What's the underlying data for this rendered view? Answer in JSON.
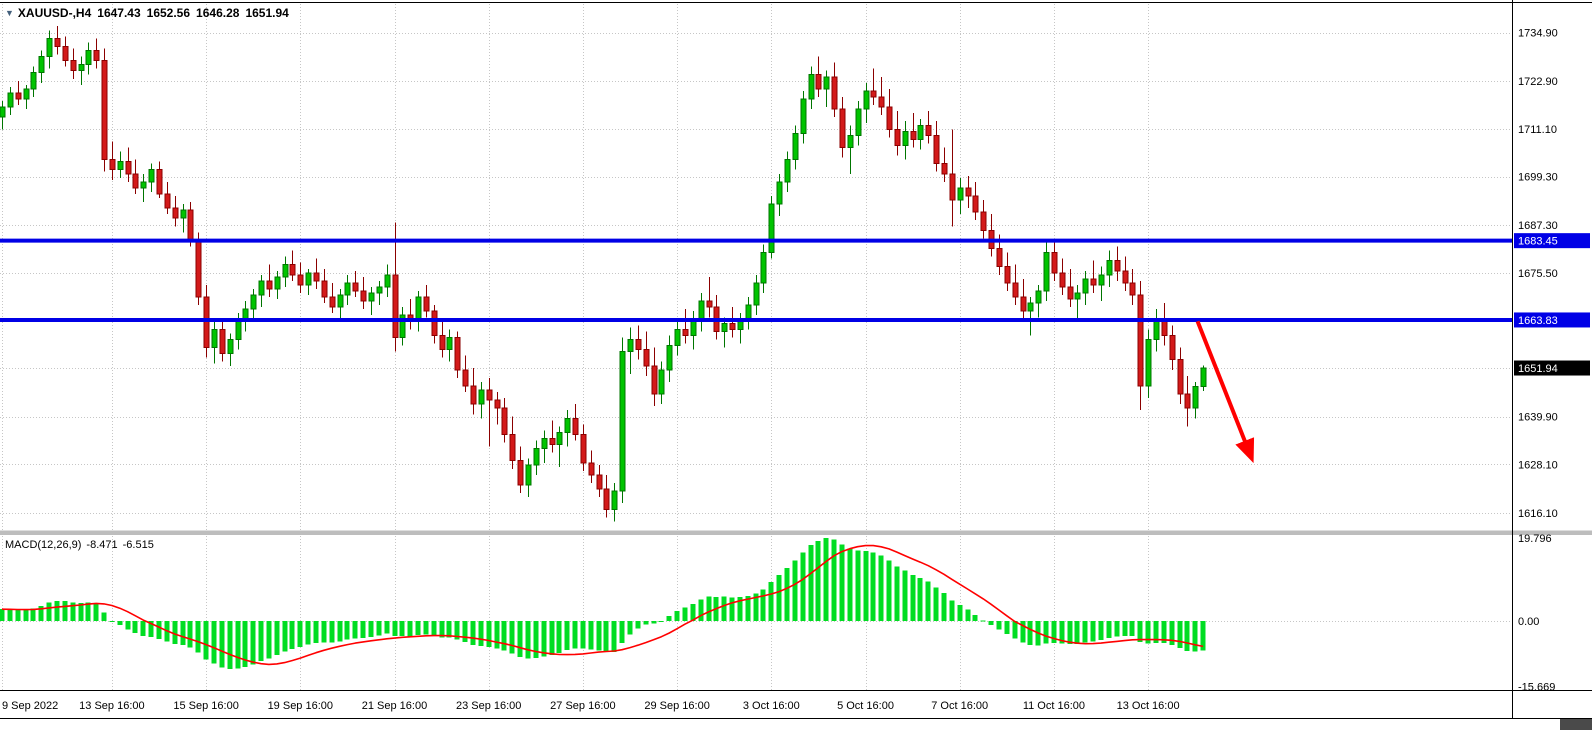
{
  "header": {
    "dropdown_icon": "▼",
    "symbol_tf": "XAUUSD-,H4",
    "open": "1647.43",
    "high": "1652.56",
    "low": "1646.28",
    "close": "1651.94"
  },
  "chart_data": {
    "type": "candlestick",
    "symbol": "XAUUSD-",
    "timeframe": "H4",
    "title": "XAUUSD-,H4 1647.43 1652.56 1646.28 1651.94",
    "price_axis": {
      "tick_labels": [
        "1734.90",
        "1722.90",
        "1711.10",
        "1699.30",
        "1687.30",
        "1675.50",
        "1639.90",
        "1628.10",
        "1616.10"
      ],
      "tick_values": [
        1734.9,
        1722.9,
        1711.1,
        1699.3,
        1687.3,
        1675.5,
        1639.9,
        1628.1,
        1616.1
      ],
      "grid_values": [
        1734.9,
        1722.9,
        1711.1,
        1699.3,
        1687.3,
        1675.5,
        1663.7,
        1651.9,
        1639.9,
        1628.1,
        1616.1
      ]
    },
    "hlines": [
      {
        "value": 1683.45,
        "label": "1683.45"
      },
      {
        "value": 1663.83,
        "label": "1663.83"
      }
    ],
    "last_price": {
      "value": 1651.94,
      "label": "1651.94"
    },
    "x_axis": {
      "labels": [
        {
          "bar": 0,
          "text": "9 Sep 2022"
        },
        {
          "bar": 14,
          "text": "13 Sep 16:00"
        },
        {
          "bar": 26,
          "text": "15 Sep 16:00"
        },
        {
          "bar": 38,
          "text": "19 Sep 16:00"
        },
        {
          "bar": 50,
          "text": "21 Sep 16:00"
        },
        {
          "bar": 62,
          "text": "23 Sep 16:00"
        },
        {
          "bar": 74,
          "text": "27 Sep 16:00"
        },
        {
          "bar": 86,
          "text": "29 Sep 16:00"
        },
        {
          "bar": 98,
          "text": "3 Oct 16:00"
        },
        {
          "bar": 110,
          "text": "5 Oct 16:00"
        },
        {
          "bar": 122,
          "text": "7 Oct 16:00"
        },
        {
          "bar": 134,
          "text": "11 Oct 16:00"
        },
        {
          "bar": 146,
          "text": "13 Oct 16:00"
        }
      ]
    },
    "candles_ohlc": [
      [
        1714.0,
        1718.0,
        1711.0,
        1716.5
      ],
      [
        1716.5,
        1721.5,
        1714.5,
        1720.0
      ],
      [
        1720.0,
        1723.0,
        1717.0,
        1718.5
      ],
      [
        1718.5,
        1722.0,
        1716.0,
        1721.0
      ],
      [
        1721.0,
        1726.5,
        1719.0,
        1725.0
      ],
      [
        1725.0,
        1730.5,
        1722.5,
        1729.0
      ],
      [
        1729.0,
        1735.5,
        1726.0,
        1733.5
      ],
      [
        1733.5,
        1736.5,
        1729.5,
        1731.5
      ],
      [
        1731.5,
        1734.0,
        1726.5,
        1728.0
      ],
      [
        1728.0,
        1731.0,
        1723.5,
        1725.5
      ],
      [
        1725.5,
        1729.0,
        1722.0,
        1727.0
      ],
      [
        1727.0,
        1732.5,
        1724.5,
        1730.5
      ],
      [
        1730.5,
        1733.5,
        1726.0,
        1728.0
      ],
      [
        1728.0,
        1731.0,
        1700.5,
        1703.5
      ],
      [
        1703.5,
        1708.0,
        1698.5,
        1701.0
      ],
      [
        1701.0,
        1705.5,
        1699.0,
        1703.0
      ],
      [
        1703.0,
        1706.5,
        1698.0,
        1700.0
      ],
      [
        1700.0,
        1703.5,
        1695.0,
        1696.5
      ],
      [
        1696.5,
        1700.0,
        1693.0,
        1698.0
      ],
      [
        1698.0,
        1702.5,
        1695.5,
        1701.0
      ],
      [
        1701.0,
        1703.0,
        1694.0,
        1695.0
      ],
      [
        1695.0,
        1698.0,
        1690.0,
        1691.5
      ],
      [
        1691.5,
        1694.5,
        1687.0,
        1689.0
      ],
      [
        1689.0,
        1692.5,
        1685.5,
        1691.0
      ],
      [
        1691.0,
        1693.0,
        1682.0,
        1683.5
      ],
      [
        1683.5,
        1685.5,
        1667.5,
        1669.5
      ],
      [
        1669.5,
        1672.5,
        1654.5,
        1657.0
      ],
      [
        1657.0,
        1663.5,
        1653.0,
        1661.5
      ],
      [
        1661.5,
        1664.0,
        1653.5,
        1655.5
      ],
      [
        1655.5,
        1660.5,
        1652.5,
        1659.0
      ],
      [
        1659.0,
        1665.5,
        1656.5,
        1664.0
      ],
      [
        1664.0,
        1668.5,
        1661.0,
        1666.5
      ],
      [
        1666.5,
        1671.5,
        1663.5,
        1670.0
      ],
      [
        1670.0,
        1675.0,
        1667.0,
        1673.5
      ],
      [
        1673.5,
        1677.5,
        1669.5,
        1671.5
      ],
      [
        1671.5,
        1676.0,
        1669.0,
        1674.5
      ],
      [
        1674.5,
        1679.5,
        1672.0,
        1677.5
      ],
      [
        1677.5,
        1681.0,
        1673.5,
        1675.0
      ],
      [
        1675.0,
        1678.0,
        1670.5,
        1672.5
      ],
      [
        1672.5,
        1676.5,
        1670.0,
        1675.5
      ],
      [
        1675.5,
        1679.0,
        1671.5,
        1673.5
      ],
      [
        1673.5,
        1676.5,
        1668.0,
        1669.5
      ],
      [
        1669.5,
        1673.0,
        1665.5,
        1667.0
      ],
      [
        1667.0,
        1671.5,
        1664.0,
        1670.0
      ],
      [
        1670.0,
        1675.0,
        1667.5,
        1673.0
      ],
      [
        1673.0,
        1676.0,
        1669.5,
        1671.0
      ],
      [
        1671.0,
        1674.5,
        1666.5,
        1668.5
      ],
      [
        1668.5,
        1672.0,
        1665.0,
        1670.5
      ],
      [
        1670.5,
        1673.5,
        1667.5,
        1672.0
      ],
      [
        1672.0,
        1677.5,
        1669.5,
        1675.0
      ],
      [
        1675.0,
        1688.0,
        1656.0,
        1659.5
      ],
      [
        1659.5,
        1667.0,
        1657.5,
        1665.0
      ],
      [
        1665.0,
        1669.0,
        1661.5,
        1663.5
      ],
      [
        1663.5,
        1671.0,
        1661.0,
        1669.5
      ],
      [
        1669.5,
        1672.5,
        1664.5,
        1666.0
      ],
      [
        1666.0,
        1667.5,
        1658.0,
        1660.0
      ],
      [
        1660.0,
        1664.0,
        1654.5,
        1656.5
      ],
      [
        1656.5,
        1661.5,
        1653.5,
        1659.5
      ],
      [
        1659.5,
        1661.0,
        1649.5,
        1651.5
      ],
      [
        1651.5,
        1655.0,
        1646.0,
        1647.5
      ],
      [
        1647.5,
        1652.0,
        1640.5,
        1643.0
      ],
      [
        1643.0,
        1648.5,
        1639.5,
        1646.5
      ],
      [
        1646.5,
        1649.5,
        1632.5,
        1644.0
      ],
      [
        1644.0,
        1646.0,
        1638.0,
        1642.0
      ],
      [
        1642.0,
        1644.5,
        1633.5,
        1635.5
      ],
      [
        1635.5,
        1640.0,
        1627.0,
        1629.0
      ],
      [
        1629.0,
        1632.5,
        1621.0,
        1623.0
      ],
      [
        1623.0,
        1629.5,
        1620.0,
        1628.0
      ],
      [
        1628.0,
        1634.0,
        1625.5,
        1632.0
      ],
      [
        1632.0,
        1636.5,
        1628.5,
        1634.5
      ],
      [
        1634.5,
        1639.0,
        1631.0,
        1633.0
      ],
      [
        1633.0,
        1637.5,
        1627.5,
        1636.0
      ],
      [
        1636.0,
        1641.5,
        1632.5,
        1639.5
      ],
      [
        1639.5,
        1643.0,
        1634.0,
        1635.5
      ],
      [
        1635.5,
        1638.0,
        1626.5,
        1628.5
      ],
      [
        1628.5,
        1631.5,
        1623.5,
        1625.5
      ],
      [
        1625.5,
        1628.0,
        1620.0,
        1622.0
      ],
      [
        1622.0,
        1625.5,
        1615.0,
        1617.0
      ],
      [
        1617.0,
        1623.5,
        1614.0,
        1621.5
      ],
      [
        1621.5,
        1659.5,
        1618.5,
        1656.0
      ],
      [
        1656.0,
        1662.0,
        1650.5,
        1659.0
      ],
      [
        1659.0,
        1662.5,
        1654.0,
        1656.5
      ],
      [
        1656.5,
        1661.0,
        1650.0,
        1652.5
      ],
      [
        1652.5,
        1657.0,
        1642.5,
        1645.5
      ],
      [
        1645.5,
        1653.5,
        1643.0,
        1651.5
      ],
      [
        1651.5,
        1660.0,
        1648.5,
        1657.5
      ],
      [
        1657.5,
        1664.0,
        1655.0,
        1661.5
      ],
      [
        1661.5,
        1666.5,
        1658.0,
        1660.0
      ],
      [
        1660.0,
        1666.0,
        1656.5,
        1663.5
      ],
      [
        1663.5,
        1670.5,
        1661.0,
        1668.5
      ],
      [
        1668.5,
        1674.5,
        1664.5,
        1667.0
      ],
      [
        1667.0,
        1670.0,
        1659.0,
        1661.0
      ],
      [
        1661.0,
        1664.5,
        1657.0,
        1663.0
      ],
      [
        1663.0,
        1667.0,
        1659.5,
        1661.5
      ],
      [
        1661.5,
        1665.5,
        1658.0,
        1664.0
      ],
      [
        1664.0,
        1669.5,
        1661.5,
        1667.5
      ],
      [
        1667.5,
        1675.0,
        1665.0,
        1673.0
      ],
      [
        1673.0,
        1682.5,
        1670.5,
        1680.5
      ],
      [
        1680.5,
        1694.5,
        1679.0,
        1692.5
      ],
      [
        1692.5,
        1700.0,
        1689.5,
        1698.0
      ],
      [
        1698.0,
        1705.5,
        1695.5,
        1703.5
      ],
      [
        1703.5,
        1712.0,
        1701.0,
        1710.0
      ],
      [
        1710.0,
        1720.5,
        1707.5,
        1718.5
      ],
      [
        1718.5,
        1726.5,
        1716.0,
        1724.5
      ],
      [
        1724.5,
        1729.0,
        1719.0,
        1721.0
      ],
      [
        1721.0,
        1725.5,
        1716.5,
        1724.0
      ],
      [
        1724.0,
        1727.5,
        1714.0,
        1716.0
      ],
      [
        1716.0,
        1719.0,
        1704.0,
        1706.5
      ],
      [
        1706.5,
        1712.0,
        1700.0,
        1709.5
      ],
      [
        1709.5,
        1718.0,
        1707.0,
        1716.0
      ],
      [
        1716.0,
        1722.5,
        1712.5,
        1720.5
      ],
      [
        1720.5,
        1726.0,
        1717.0,
        1719.0
      ],
      [
        1719.0,
        1724.0,
        1714.5,
        1716.5
      ],
      [
        1716.5,
        1721.0,
        1709.0,
        1711.0
      ],
      [
        1711.0,
        1715.5,
        1704.5,
        1707.0
      ],
      [
        1707.0,
        1713.0,
        1703.5,
        1710.5
      ],
      [
        1710.5,
        1715.0,
        1706.5,
        1708.5
      ],
      [
        1708.5,
        1713.5,
        1706.0,
        1712.0
      ],
      [
        1712.0,
        1715.5,
        1707.5,
        1709.5
      ],
      [
        1709.5,
        1713.0,
        1700.5,
        1702.5
      ],
      [
        1702.5,
        1706.5,
        1698.0,
        1700.0
      ],
      [
        1700.0,
        1711.0,
        1687.0,
        1693.5
      ],
      [
        1693.5,
        1699.0,
        1690.0,
        1696.5
      ],
      [
        1696.5,
        1699.5,
        1691.5,
        1694.5
      ],
      [
        1694.5,
        1698.0,
        1688.5,
        1690.5
      ],
      [
        1690.5,
        1693.5,
        1684.0,
        1686.0
      ],
      [
        1686.0,
        1690.0,
        1679.5,
        1681.5
      ],
      [
        1681.5,
        1685.0,
        1675.0,
        1677.0
      ],
      [
        1677.0,
        1680.5,
        1671.0,
        1673.0
      ],
      [
        1673.0,
        1677.5,
        1667.5,
        1669.5
      ],
      [
        1669.5,
        1674.0,
        1663.5,
        1666.0
      ],
      [
        1666.0,
        1669.5,
        1660.0,
        1668.0
      ],
      [
        1668.0,
        1672.5,
        1664.5,
        1671.0
      ],
      [
        1671.0,
        1683.0,
        1668.5,
        1680.5
      ],
      [
        1680.5,
        1683.5,
        1673.5,
        1675.5
      ],
      [
        1675.5,
        1679.0,
        1670.0,
        1672.0
      ],
      [
        1672.0,
        1676.5,
        1667.0,
        1669.0
      ],
      [
        1669.0,
        1672.5,
        1664.0,
        1670.5
      ],
      [
        1670.5,
        1676.0,
        1667.5,
        1674.0
      ],
      [
        1674.0,
        1678.5,
        1670.5,
        1672.5
      ],
      [
        1672.5,
        1677.0,
        1668.5,
        1675.0
      ],
      [
        1675.0,
        1681.0,
        1672.0,
        1678.5
      ],
      [
        1678.5,
        1682.0,
        1673.5,
        1676.0
      ],
      [
        1676.0,
        1679.5,
        1671.0,
        1673.0
      ],
      [
        1673.0,
        1676.5,
        1667.5,
        1670.0
      ],
      [
        1670.0,
        1673.5,
        1641.5,
        1647.5
      ],
      [
        1647.5,
        1661.5,
        1644.5,
        1659.0
      ],
      [
        1659.0,
        1666.5,
        1656.0,
        1664.0
      ],
      [
        1664.0,
        1668.0,
        1657.5,
        1660.0
      ],
      [
        1660.0,
        1662.5,
        1651.5,
        1654.0
      ],
      [
        1654.0,
        1657.0,
        1643.0,
        1645.5
      ],
      [
        1645.5,
        1650.0,
        1637.5,
        1642.0
      ],
      [
        1642.0,
        1648.5,
        1639.5,
        1647.4
      ],
      [
        1647.43,
        1652.56,
        1646.28,
        1651.94
      ]
    ],
    "macd": {
      "title": "MACD(12,26,9)",
      "main_value": "-8.471",
      "signal_value": "-6.515",
      "params": {
        "fast": 12,
        "slow": 26,
        "signal": 9
      },
      "scale_max": 19.796,
      "scale_min": -15.669,
      "axis_labels": [
        {
          "value": 19.796,
          "text": "19.796"
        },
        {
          "value": 0,
          "text": "0.00"
        },
        {
          "value": -15.669,
          "text": "-15.669"
        }
      ]
    },
    "trend_arrow": {
      "from_bar": 152.3,
      "from_price": 1663.5,
      "to_bar": 158.5,
      "to_price": 1633.0
    }
  },
  "colors": {
    "background": "#FFFFFF",
    "grid": "#C6C6C6",
    "axis_text": "#000000",
    "bull_fill": "#00C400",
    "bull_stroke": "#007500",
    "bear_fill": "#D31A1A",
    "bear_stroke": "#8B0000",
    "hline": "#0000E6",
    "badge_text": "#FFFFFF",
    "last_price_badge_bg": "#000000",
    "histogram": "#00DD22",
    "signal_line": "#FF0000",
    "arrow": "#FF0000",
    "border": "#000000",
    "separator": "#BDBDBD"
  }
}
